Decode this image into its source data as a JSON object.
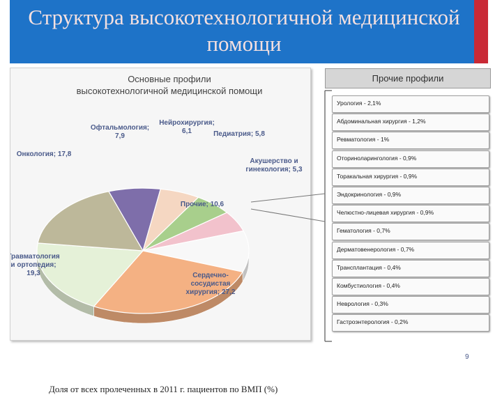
{
  "header": {
    "title": "Структура высокотехнологичной медицинской помощи"
  },
  "chart_data": {
    "type": "pie",
    "title": "Основные профили высокотехнологичной медицинской помощи",
    "slices": [
      {
        "label": "Офтальмология;",
        "value_text": "7,9",
        "value": 7.9,
        "color": "#7e6eaa"
      },
      {
        "label": "Нейрохирургия;",
        "value_text": "6,1",
        "value": 6.1,
        "color": "#f5d7c2"
      },
      {
        "label": "Педиатрия;",
        "value_text": "5,8",
        "value": 5.8,
        "color": "#a8cf8c"
      },
      {
        "label": "Акушерство и гинекология;",
        "value_text": "5,3",
        "value": 5.3,
        "color": "#f2c2cc"
      },
      {
        "label": "Прочие;",
        "value_text": "10,6",
        "value": 10.6,
        "color": "#f8f8f8"
      },
      {
        "label": "Сердечно-сосудистая хирургия;",
        "value_text": "27,2",
        "value": 27.2,
        "color": "#f4b183"
      },
      {
        "label": "Травматология и ортопедия;",
        "value_text": "19,3",
        "value": 19.3,
        "color": "#e5f1d8"
      },
      {
        "label": "Онкология;",
        "value_text": "17,8",
        "value": 17.8,
        "color": "#bdb89a"
      }
    ],
    "footnote": "Доля от всех пролеченных в 2011 г. пациентов по ВМП (%)"
  },
  "others": {
    "header": "Прочие профили",
    "items": [
      "Урология - 2,1%",
      "Абдоминальная хирургия - 1,2%",
      "Ревматология - 1%",
      "Оториноларингология - 0,9%",
      "Торакальная хирургия - 0,9%",
      "Эндокринология - 0,9%",
      "Челюстно-лицевая хирургия - 0,9%",
      "Гематология - 0,7%",
      "Дерматовенерология - 0,7%",
      "Трансплантация - 0,4%",
      "Комбустиология - 0,4%",
      "Неврология - 0,3%",
      "Гастроэнтерология - 0,2%"
    ]
  },
  "page_number": "9"
}
